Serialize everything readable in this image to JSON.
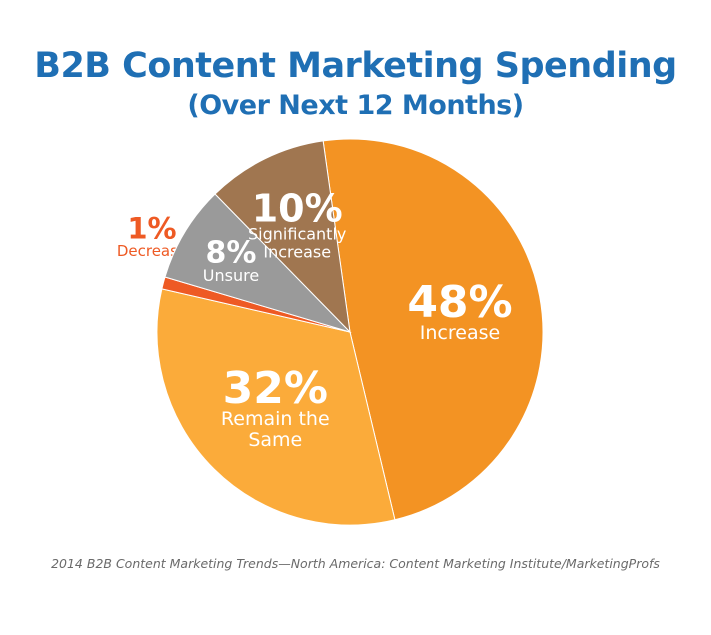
{
  "title": "B2B Content Marketing Spending",
  "subtitle": "(Over Next 12 Months)",
  "source": "2014 B2B Content Marketing Trends—North America: Content Marketing Institute/MarketingProfs",
  "chart_data": {
    "type": "pie",
    "title": "B2B Content Marketing Spending",
    "subtitle": "(Over Next 12 Months)",
    "slices": [
      {
        "name": "Increase",
        "value": 48,
        "label": "48%",
        "lines": [
          "Increase"
        ],
        "color": "#f39323",
        "text_color": "#ffffff"
      },
      {
        "name": "Remain the Same",
        "value": 32,
        "label": "32%",
        "lines": [
          "Remain the",
          "Same"
        ],
        "color": "#fbab3a",
        "text_color": "#ffffff"
      },
      {
        "name": "Decrease",
        "value": 1,
        "label": "1%",
        "lines": [
          "Decrease"
        ],
        "color": "#ee5a24",
        "text_color": "#ee5a24"
      },
      {
        "name": "Unsure",
        "value": 8,
        "label": "8%",
        "lines": [
          "Unsure"
        ],
        "color": "#9a9a9a",
        "text_color": "#ffffff"
      },
      {
        "name": "Significantly Increase",
        "value": 10,
        "label": "10%",
        "lines": [
          "Significantly",
          "Increase"
        ],
        "color": "#a07650",
        "text_color": "#ffffff"
      }
    ]
  }
}
